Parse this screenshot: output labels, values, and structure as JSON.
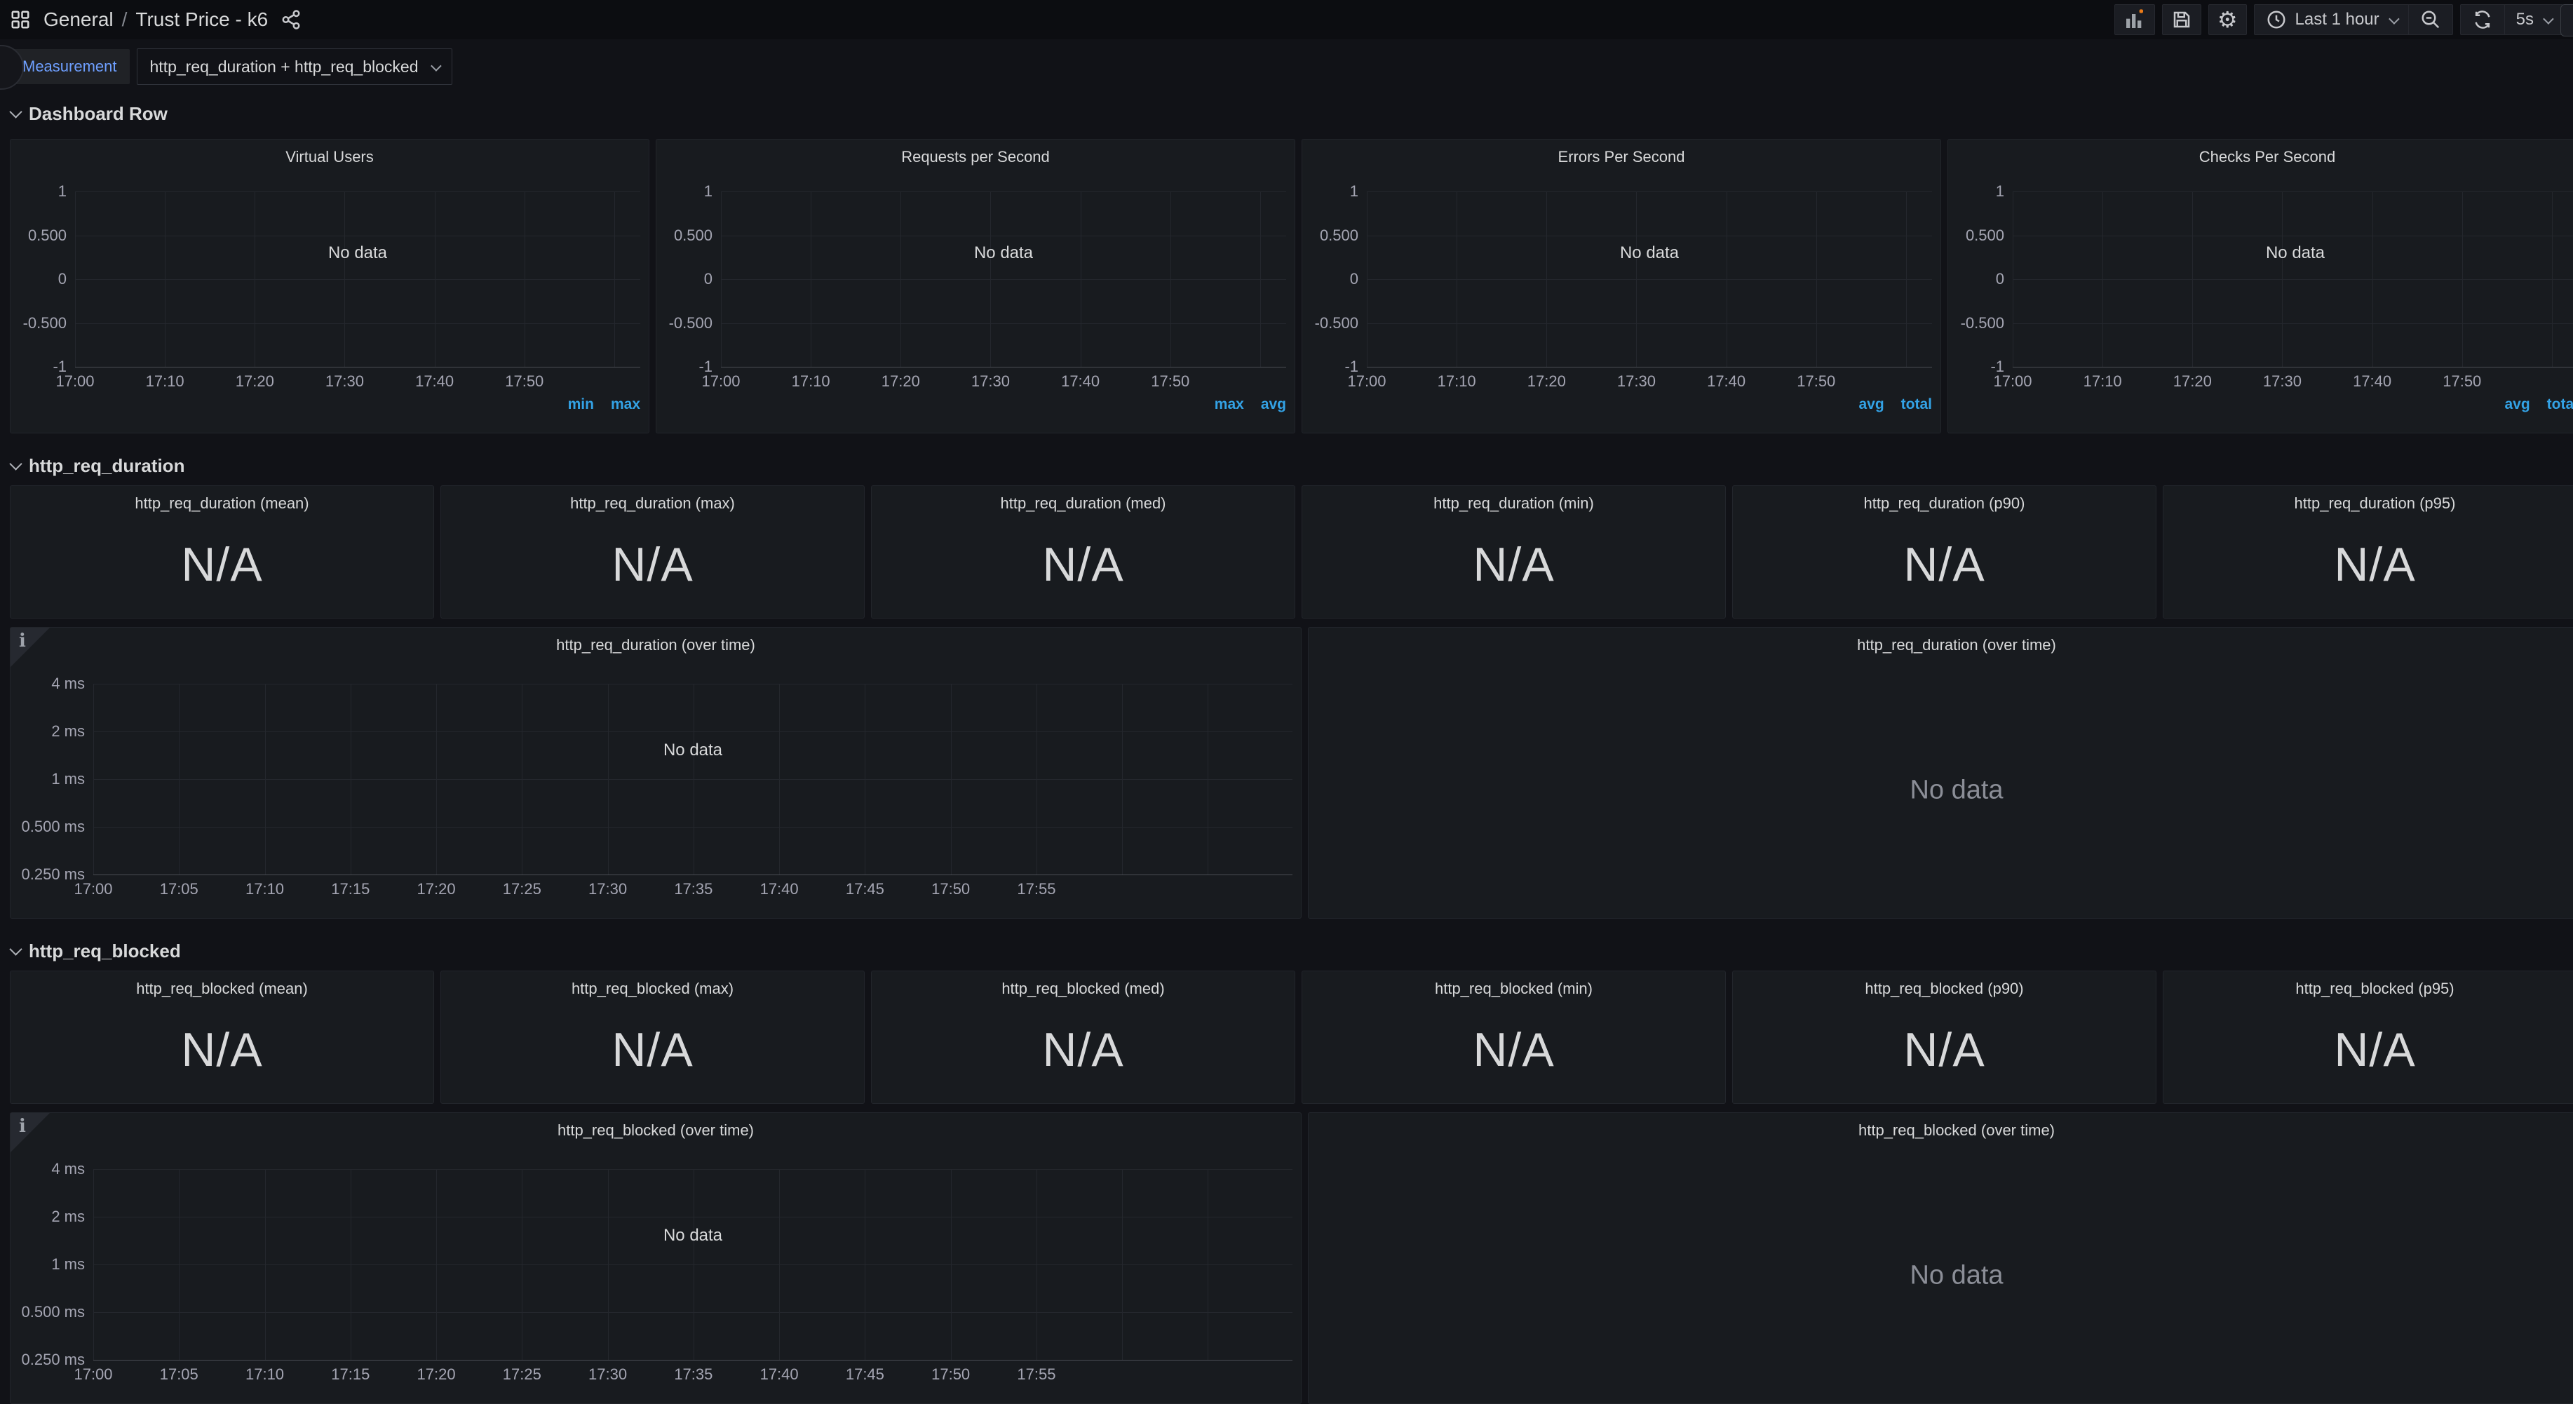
{
  "topbar": {
    "breadcrumb": {
      "folder": "General",
      "separator": "/",
      "dashboard": "Trust Price - k6"
    },
    "time_range": "Last 1 hour",
    "refresh_interval": "5s"
  },
  "icons": {
    "gear": "⚙"
  },
  "variables": {
    "label": "Measurement",
    "value": "http_req_duration + http_req_blocked"
  },
  "section_headers": {
    "row1": "Dashboard Row",
    "duration": "http_req_duration",
    "blocked": "http_req_blocked"
  },
  "no_data": "No data",
  "row1_panels": [
    {
      "title": "Virtual Users",
      "legend": [
        "min",
        "max"
      ]
    },
    {
      "title": "Requests per Second",
      "legend": [
        "max",
        "avg"
      ]
    },
    {
      "title": "Errors Per Second",
      "legend": [
        "avg",
        "total"
      ]
    },
    {
      "title": "Checks Per Second",
      "legend": [
        "avg",
        "total"
      ]
    }
  ],
  "duration_stats": [
    {
      "title": "http_req_duration (mean)",
      "value": "N/A"
    },
    {
      "title": "http_req_duration (max)",
      "value": "N/A"
    },
    {
      "title": "http_req_duration (med)",
      "value": "N/A"
    },
    {
      "title": "http_req_duration (min)",
      "value": "N/A"
    },
    {
      "title": "http_req_duration (p90)",
      "value": "N/A"
    },
    {
      "title": "http_req_duration (p95)",
      "value": "N/A"
    }
  ],
  "duration_timeseries_title": "http_req_duration (over time)",
  "blocked_stats": [
    {
      "title": "http_req_blocked (mean)",
      "value": "N/A"
    },
    {
      "title": "http_req_blocked (max)",
      "value": "N/A"
    },
    {
      "title": "http_req_blocked (med)",
      "value": "N/A"
    },
    {
      "title": "http_req_blocked (min)",
      "value": "N/A"
    },
    {
      "title": "http_req_blocked (p90)",
      "value": "N/A"
    },
    {
      "title": "http_req_blocked (p95)",
      "value": "N/A"
    }
  ],
  "blocked_timeseries_title": "http_req_blocked (over time)",
  "charts": {
    "row1": {
      "type": "timeseries-empty",
      "y_ticks": [
        "1",
        "0.500",
        "0",
        "-0.500",
        "-1"
      ],
      "x_ticks": [
        "17:00",
        "17:10",
        "17:20",
        "17:30",
        "17:40",
        "17:50"
      ],
      "x_spacing_pct": 15.9,
      "extra_gridlines": 1
    },
    "overtime": {
      "type": "timeseries-empty",
      "y_ticks": [
        "4 ms",
        "2 ms",
        "1 ms",
        "0.500 ms",
        "0.250 ms"
      ],
      "x_ticks": [
        "17:00",
        "17:05",
        "17:10",
        "17:15",
        "17:20",
        "17:25",
        "17:30",
        "17:35",
        "17:40",
        "17:45",
        "17:50",
        "17:55"
      ],
      "x_spacing_pct": 7.15,
      "extra_gridlines": 3
    }
  },
  "colors": {
    "page_bg": "#111217",
    "panel_bg": "#181b1f",
    "accent_blue": "#33a2e5",
    "variable_label_blue": "#6e9fff",
    "add_plus_orange": "#eb7b18"
  }
}
